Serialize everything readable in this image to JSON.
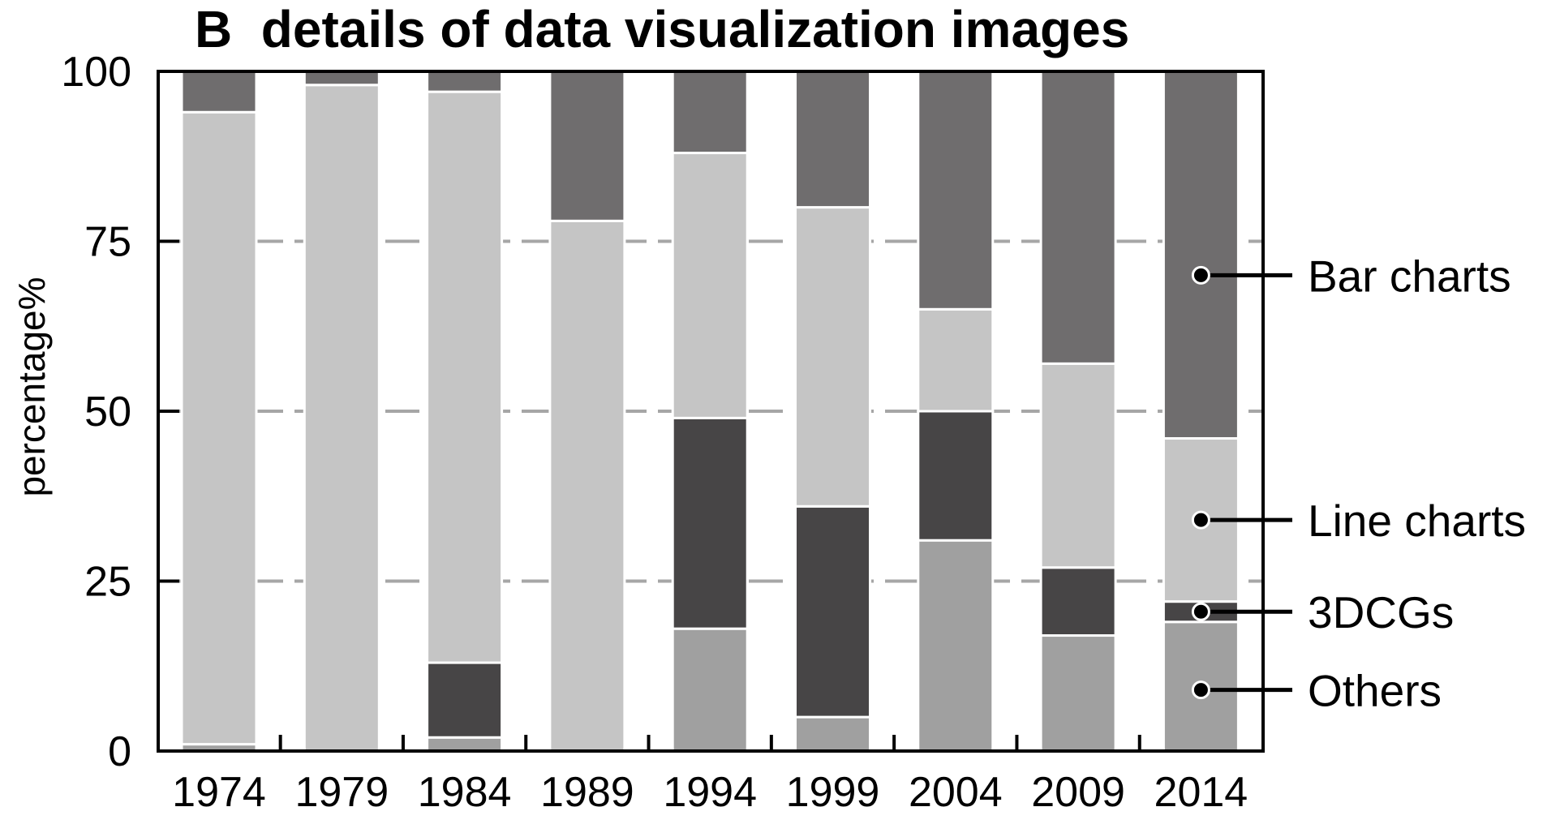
{
  "colors": {
    "background": "#ffffff",
    "gridline": "#a6a6a6",
    "axis": "#000000",
    "segment_border": "#ffffff"
  },
  "chart_data": {
    "type": "bar",
    "stacked": true,
    "title": "B  details of data visualization images",
    "xlabel": "",
    "ylabel": "percentage%",
    "ylim": [
      0,
      100
    ],
    "y_ticks": [
      0,
      25,
      50,
      75,
      100
    ],
    "grid": "horizontal dashed",
    "legend_placement": "right, labels pointing to 2014 bar",
    "categories": [
      "1974",
      "1979",
      "1984",
      "1989",
      "1994",
      "1999",
      "2004",
      "2009",
      "2014"
    ],
    "series": [
      {
        "name": "Others",
        "color": "#a0a0a0",
        "values": [
          1,
          0,
          2,
          0,
          18,
          5,
          31,
          17,
          19
        ]
      },
      {
        "name": "3DCGs",
        "color": "#474546",
        "values": [
          0,
          0,
          11,
          0,
          31,
          31,
          19,
          10,
          3
        ]
      },
      {
        "name": "Line charts",
        "color": "#c5c5c5",
        "values": [
          93,
          98,
          84,
          78,
          39,
          44,
          15,
          30,
          24
        ]
      },
      {
        "name": "Bar charts",
        "color": "#6f6d6e",
        "values": [
          6,
          2,
          3,
          22,
          12,
          20,
          35,
          43,
          54
        ]
      }
    ],
    "legend": [
      {
        "label": "Bar charts",
        "value": 70
      },
      {
        "label": "Line charts",
        "value": 34
      },
      {
        "label": "3DCGs",
        "value": 20.5
      },
      {
        "label": "Others",
        "value": 9
      }
    ]
  }
}
